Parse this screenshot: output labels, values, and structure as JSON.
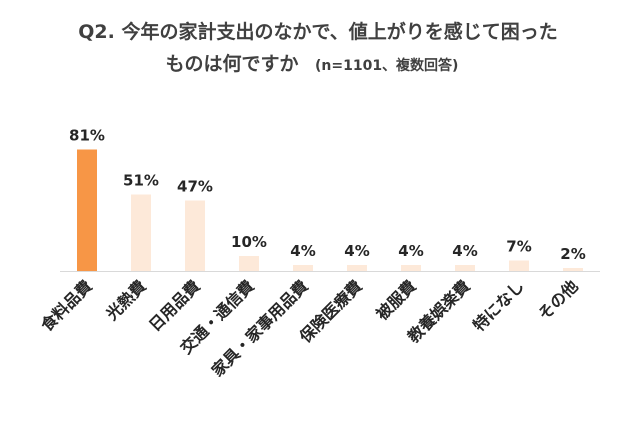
{
  "chart_data": {
    "type": "bar",
    "title": "Q2. 今年の家計支出のなかで、値上がりを感じて困った",
    "title_line2": "ものは何ですか",
    "subtitle": "(n=1101、複数回答)",
    "categories": [
      "食料品費",
      "光熱費",
      "日用品費",
      "交通・通信費",
      "家具・家事用品費",
      "保険医療費",
      "被服費",
      "教養娯楽費",
      "特になし",
      "その他"
    ],
    "values": [
      81,
      51,
      47,
      10,
      4,
      4,
      4,
      4,
      7,
      2
    ],
    "value_labels": [
      "81%",
      "51%",
      "47%",
      "10%",
      "4%",
      "4%",
      "4%",
      "4%",
      "7%",
      "2%"
    ],
    "xlabel": "",
    "ylabel": "",
    "ylim": [
      0,
      100
    ],
    "grid": false,
    "legend": "none",
    "colors": {
      "highlight": "#F79646",
      "normal": "#FDE9D9",
      "axis": "#D9D9D9",
      "title": "#404040",
      "text": "#262626"
    },
    "highlight_index": 0
  }
}
